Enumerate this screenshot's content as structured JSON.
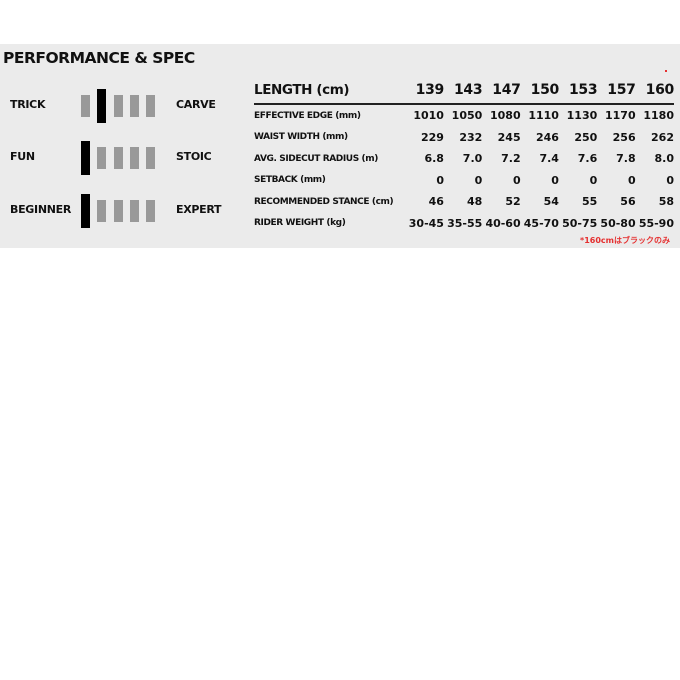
{
  "title": "PERFORMANCE & SPEC",
  "performance": [
    {
      "left": "TRICK",
      "right": "CARVE",
      "level": 2,
      "scale": 5
    },
    {
      "left": "FUN",
      "right": "STOIC",
      "level": 1,
      "scale": 5
    },
    {
      "left": "BEGINNER",
      "right": "EXPERT",
      "level": 1,
      "scale": 5
    }
  ],
  "spec": {
    "header": [
      "LENGTH (cm)",
      "139",
      "143",
      "147",
      "150",
      "153",
      "157",
      "160"
    ],
    "rows": [
      [
        "EFFECTIVE EDGE (mm)",
        "1010",
        "1050",
        "1080",
        "1110",
        "1130",
        "1170",
        "1180"
      ],
      [
        "WAIST WIDTH (mm)",
        "229",
        "232",
        "245",
        "246",
        "250",
        "256",
        "262"
      ],
      [
        "AVG. SIDECUT RADIUS (m)",
        "6.8",
        "7.0",
        "7.2",
        "7.4",
        "7.6",
        "7.8",
        "8.0"
      ],
      [
        "SETBACK (mm)",
        "0",
        "0",
        "0",
        "0",
        "0",
        "0",
        "0"
      ],
      [
        "RECOMMENDED STANCE (cm)",
        "46",
        "48",
        "52",
        "54",
        "55",
        "56",
        "58"
      ],
      [
        "RIDER WEIGHT (kg)",
        "30-45",
        "35-55",
        "40-60",
        "45-70",
        "50-75",
        "50-80",
        "55-90"
      ]
    ],
    "note": "*160cmはブラックのみ"
  },
  "colors": {
    "panel": "#ebebeb",
    "inactive": "#999999",
    "active": "#000000",
    "note": "#e53030"
  }
}
